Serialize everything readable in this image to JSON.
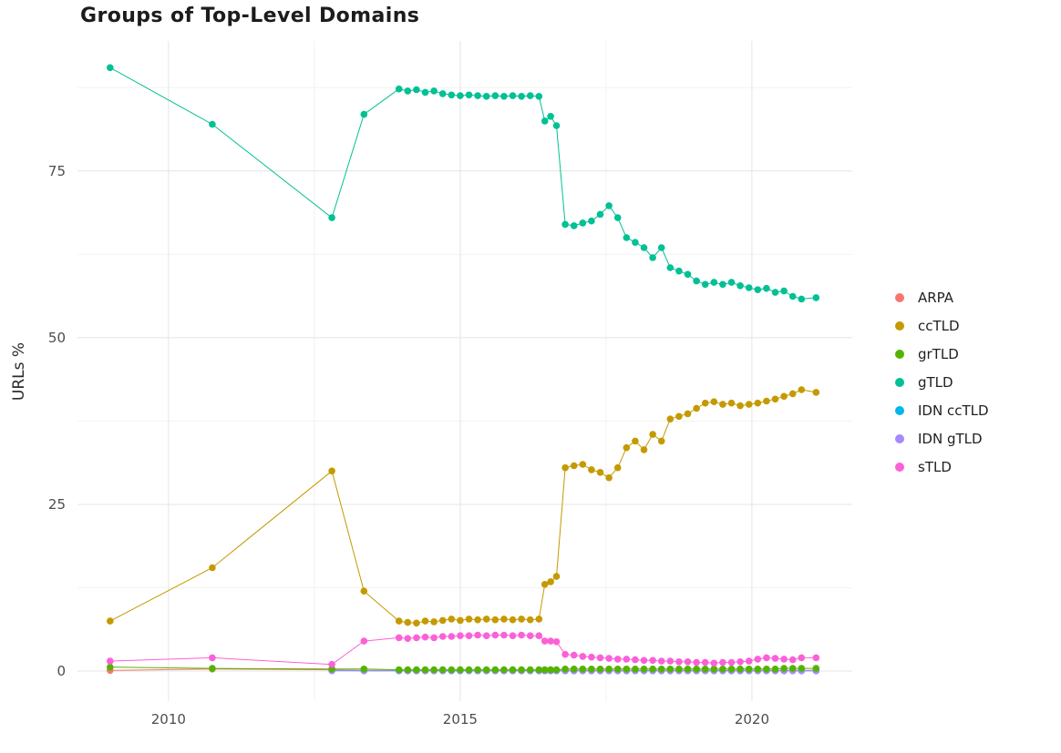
{
  "title": "Groups of Top-Level Domains",
  "ylabel": "URLs %",
  "chart_data": {
    "type": "line",
    "title": "Groups of Top-Level Domains",
    "xlabel": "",
    "ylabel": "URLs %",
    "grid": true,
    "legend_position": "right",
    "xlim": [
      2008.44,
      2021.72
    ],
    "ylim": [
      -4.5,
      94.5
    ],
    "x_ticks": [
      2010,
      2015,
      2020
    ],
    "y_ticks": [
      0,
      25,
      50,
      75
    ],
    "x_minor": [
      2012.5,
      2017.5
    ],
    "y_minor": [
      12.5,
      37.5,
      62.5,
      87.5
    ],
    "x": [
      2009.0,
      2010.75,
      2012.8,
      2013.35,
      2013.95,
      2014.1,
      2014.25,
      2014.4,
      2014.55,
      2014.7,
      2014.85,
      2015.0,
      2015.15,
      2015.3,
      2015.45,
      2015.6,
      2015.75,
      2015.9,
      2016.05,
      2016.2,
      2016.35,
      2016.45,
      2016.55,
      2016.65,
      2016.8,
      2016.95,
      2017.1,
      2017.25,
      2017.4,
      2017.55,
      2017.7,
      2017.85,
      2018.0,
      2018.15,
      2018.3,
      2018.45,
      2018.6,
      2018.75,
      2018.9,
      2019.05,
      2019.2,
      2019.35,
      2019.5,
      2019.65,
      2019.8,
      2019.95,
      2020.1,
      2020.25,
      2020.4,
      2020.55,
      2020.7,
      2020.85,
      2021.1
    ],
    "series": [
      {
        "name": "ARPA",
        "color": "#F8766D",
        "values": [
          0.1,
          0.3,
          0.2,
          0.1,
          0.1,
          0.1,
          0.1,
          0.1,
          0.1,
          0.1,
          0.1,
          0.1,
          0.1,
          0.1,
          0.1,
          0.1,
          0.1,
          0.1,
          0.1,
          0.1,
          0.1,
          0.1,
          0.1,
          0.1,
          0.1,
          0.1,
          0.1,
          0.1,
          0.1,
          0.1,
          0.1,
          0.1,
          0.1,
          0.1,
          0.1,
          0.1,
          0.1,
          0.1,
          0.1,
          0.1,
          0.1,
          0.1,
          0.1,
          0.1,
          0.1,
          0.1,
          0.1,
          0.1,
          0.1,
          0.1,
          0.1,
          0.1,
          0.1
        ]
      },
      {
        "name": "ccTLD",
        "color": "#C49A00",
        "values": [
          7.5,
          15.5,
          30.0,
          12.0,
          7.5,
          7.3,
          7.2,
          7.5,
          7.4,
          7.6,
          7.8,
          7.6,
          7.8,
          7.7,
          7.8,
          7.7,
          7.8,
          7.7,
          7.8,
          7.7,
          7.8,
          13.0,
          13.4,
          14.2,
          30.5,
          30.8,
          31.0,
          30.2,
          29.8,
          29.0,
          30.5,
          33.5,
          34.5,
          33.2,
          35.5,
          34.5,
          37.8,
          38.2,
          38.6,
          39.4,
          40.2,
          40.4,
          40.0,
          40.2,
          39.8,
          40.0,
          40.2,
          40.5,
          40.8,
          41.2,
          41.6,
          42.2,
          41.8
        ]
      },
      {
        "name": "grTLD",
        "color": "#53B400",
        "values": [
          0.6,
          0.4,
          0.3,
          0.3,
          0.2,
          0.2,
          0.2,
          0.2,
          0.2,
          0.2,
          0.2,
          0.2,
          0.2,
          0.2,
          0.2,
          0.2,
          0.2,
          0.2,
          0.2,
          0.2,
          0.2,
          0.2,
          0.2,
          0.2,
          0.3,
          0.3,
          0.3,
          0.3,
          0.3,
          0.3,
          0.3,
          0.3,
          0.3,
          0.3,
          0.3,
          0.3,
          0.3,
          0.3,
          0.3,
          0.3,
          0.3,
          0.3,
          0.3,
          0.3,
          0.3,
          0.3,
          0.3,
          0.3,
          0.3,
          0.4,
          0.4,
          0.4,
          0.4
        ]
      },
      {
        "name": "gTLD",
        "color": "#00C094",
        "values": [
          90.5,
          82.0,
          68.0,
          83.5,
          87.3,
          87.0,
          87.2,
          86.8,
          87.0,
          86.6,
          86.4,
          86.3,
          86.4,
          86.3,
          86.2,
          86.3,
          86.2,
          86.3,
          86.2,
          86.3,
          86.2,
          82.5,
          83.2,
          81.8,
          67.0,
          66.8,
          67.2,
          67.5,
          68.5,
          69.8,
          68.0,
          65.0,
          64.3,
          63.5,
          62.0,
          63.5,
          60.5,
          60.0,
          59.5,
          58.5,
          58.0,
          58.3,
          58.0,
          58.3,
          57.8,
          57.5,
          57.2,
          57.4,
          56.8,
          57.0,
          56.2,
          55.8,
          56.0
        ]
      },
      {
        "name": "IDN ccTLD",
        "color": "#00B6EB",
        "values": [
          null,
          null,
          0.1,
          0.05,
          0.05,
          0.05,
          0.05,
          0.05,
          0.05,
          0.05,
          0.05,
          0.05,
          0.05,
          0.05,
          0.05,
          0.05,
          0.05,
          0.05,
          0.05,
          0.05,
          0.05,
          0.05,
          0.05,
          0.05,
          0.05,
          0.05,
          0.05,
          0.05,
          0.05,
          0.05,
          0.05,
          0.05,
          0.05,
          0.05,
          0.05,
          0.05,
          0.05,
          0.05,
          0.05,
          0.05,
          0.05,
          0.05,
          0.05,
          0.05,
          0.05,
          0.05,
          0.05,
          0.05,
          0.05,
          0.05,
          0.05,
          0.05,
          0.05
        ]
      },
      {
        "name": "IDN gTLD",
        "color": "#A58AFF",
        "values": [
          null,
          null,
          0.05,
          0.05,
          0.05,
          0.05,
          0.05,
          0.05,
          0.05,
          0.05,
          0.05,
          0.05,
          0.05,
          0.05,
          0.05,
          0.05,
          0.05,
          0.05,
          0.05,
          0.05,
          0.05,
          0.05,
          0.05,
          0.05,
          0.05,
          0.05,
          0.05,
          0.05,
          0.05,
          0.05,
          0.05,
          0.05,
          0.05,
          0.05,
          0.05,
          0.05,
          0.05,
          0.05,
          0.05,
          0.05,
          0.05,
          0.05,
          0.05,
          0.05,
          0.05,
          0.05,
          0.05,
          0.05,
          0.05,
          0.05,
          0.05,
          0.05,
          0.05
        ]
      },
      {
        "name": "sTLD",
        "color": "#FB61D7",
        "values": [
          1.5,
          2.0,
          1.0,
          4.5,
          5.0,
          4.9,
          5.0,
          5.1,
          5.0,
          5.2,
          5.2,
          5.3,
          5.3,
          5.4,
          5.3,
          5.4,
          5.4,
          5.3,
          5.4,
          5.3,
          5.3,
          4.5,
          4.5,
          4.4,
          2.5,
          2.4,
          2.2,
          2.1,
          2.0,
          1.9,
          1.8,
          1.8,
          1.7,
          1.6,
          1.6,
          1.5,
          1.5,
          1.4,
          1.4,
          1.3,
          1.3,
          1.2,
          1.3,
          1.3,
          1.4,
          1.5,
          1.8,
          2.0,
          1.9,
          1.8,
          1.7,
          2.0,
          2.0
        ]
      }
    ]
  },
  "colors": {
    "grid_major": "#e4e4e4",
    "grid_minor": "#f2f2f2",
    "axis_text": "#4d4d4d"
  }
}
